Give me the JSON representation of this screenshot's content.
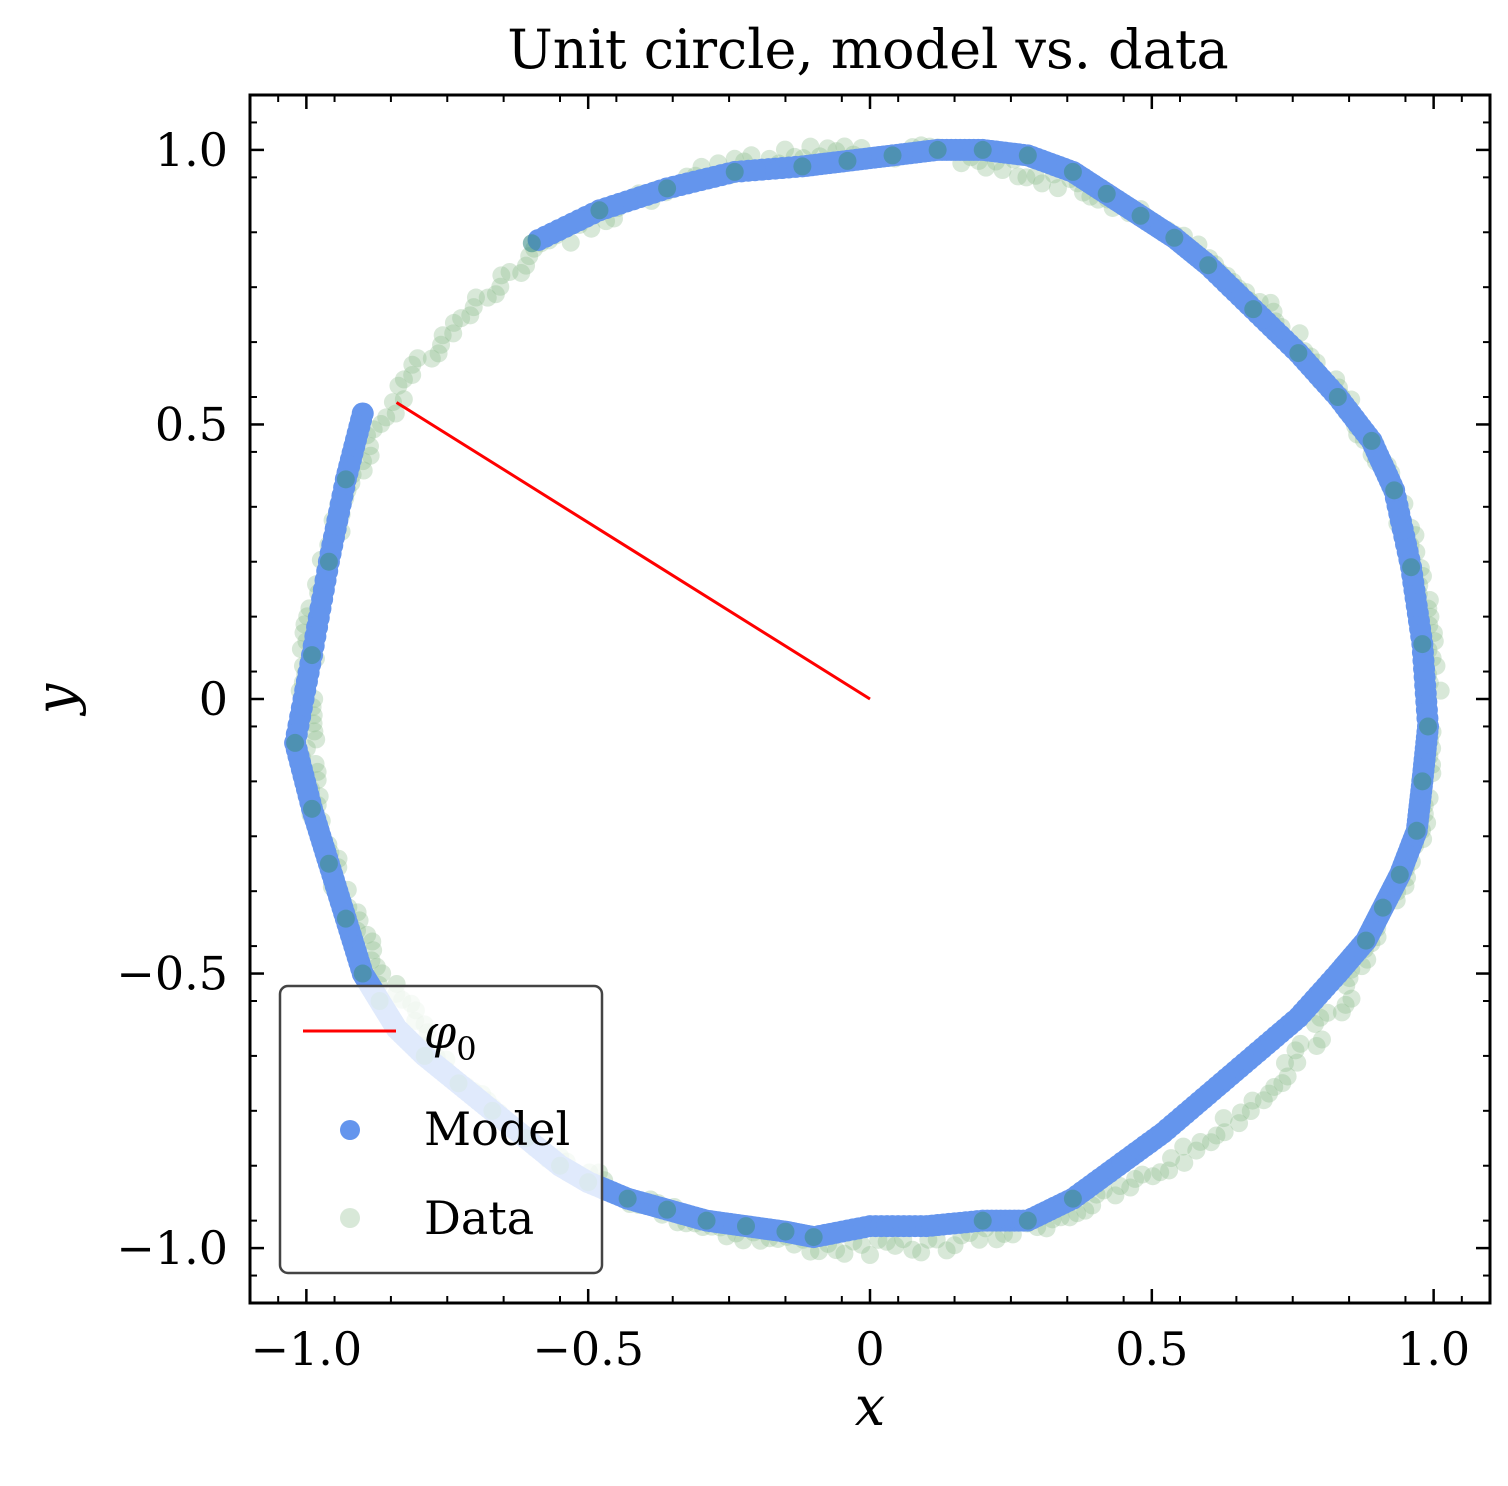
{
  "chart_data": {
    "type": "scatter",
    "title": "Unit circle, model vs. data",
    "xlabel": "x",
    "ylabel": "y",
    "xlim": [
      -1.1,
      1.1
    ],
    "ylim": [
      -1.1,
      1.1
    ],
    "x_ticks": [
      -1.0,
      -0.5,
      0,
      0.5,
      1.0
    ],
    "x_tick_labels": [
      "−1.0",
      "−0.5",
      "0",
      "0.5",
      "1.0"
    ],
    "y_ticks": [
      -1.0,
      -0.5,
      0,
      0.5,
      1.0
    ],
    "y_tick_labels": [
      "−1.0",
      "−0.5",
      "0",
      "0.5",
      "1.0"
    ],
    "grid": false,
    "legend_position": "lower-left",
    "legend": [
      {
        "label": "φ",
        "subscript": "0",
        "kind": "line",
        "color": "#ff0000"
      },
      {
        "label": "Model",
        "kind": "marker",
        "color": "#6495ed"
      },
      {
        "label": "Data",
        "kind": "marker",
        "color": "#8fbc8f"
      }
    ],
    "series": [
      {
        "name": "φ0",
        "kind": "line",
        "color": "#ff0000",
        "x": [
          0,
          -0.84
        ],
        "y": [
          0,
          0.54
        ]
      },
      {
        "name": "Model",
        "kind": "scatter",
        "color": "#6495ed",
        "x": [
          -0.9,
          -0.93,
          -0.96,
          -0.99,
          -1.02,
          -0.99,
          -0.96,
          -0.93,
          -0.9,
          -0.87,
          -0.84,
          -0.79,
          -0.73,
          -0.67,
          -0.61,
          -0.55,
          -0.5,
          -0.43,
          -0.36,
          -0.29,
          -0.22,
          -0.15,
          -0.1,
          0.0,
          0.1,
          0.2,
          0.28,
          0.36,
          0.44,
          0.52,
          0.6,
          0.68,
          0.76,
          0.83,
          0.88,
          0.91,
          0.94,
          0.97,
          0.98,
          0.99,
          0.98,
          0.96,
          0.93,
          0.89,
          0.83,
          0.76,
          0.68,
          0.6,
          0.54,
          0.48,
          0.42,
          0.36,
          0.28,
          0.2,
          0.12,
          0.04,
          -0.04,
          -0.12,
          -0.24,
          -0.36,
          -0.48,
          -0.6
        ],
        "y": [
          0.52,
          0.4,
          0.25,
          0.08,
          -0.08,
          -0.2,
          -0.3,
          -0.4,
          -0.5,
          -0.55,
          -0.6,
          -0.65,
          -0.7,
          -0.75,
          -0.8,
          -0.85,
          -0.88,
          -0.91,
          -0.93,
          -0.95,
          -0.96,
          -0.97,
          -0.98,
          -0.96,
          -0.96,
          -0.95,
          -0.95,
          -0.91,
          -0.85,
          -0.79,
          -0.72,
          -0.65,
          -0.58,
          -0.5,
          -0.44,
          -0.38,
          -0.32,
          -0.24,
          -0.15,
          -0.05,
          0.1,
          0.24,
          0.38,
          0.47,
          0.55,
          0.63,
          0.71,
          0.79,
          0.84,
          0.88,
          0.92,
          0.96,
          0.99,
          1.0,
          1.0,
          0.99,
          0.98,
          0.97,
          0.96,
          0.93,
          0.89,
          0.83
        ]
      },
      {
        "name": "Data",
        "kind": "scatter",
        "color": "#8fbc8f",
        "parametric": "x = cos(t), y = sin(t)",
        "x": [],
        "y": []
      }
    ]
  }
}
